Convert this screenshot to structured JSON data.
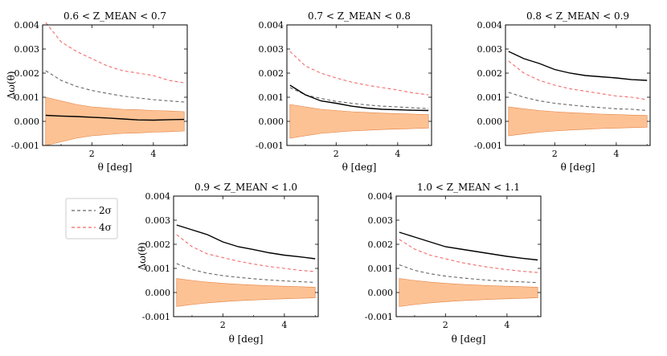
{
  "figure": {
    "x_label": "θ [deg]",
    "y_label": "Δω(θ)"
  },
  "legend": {
    "entries": [
      {
        "label": "2σ",
        "color": "#666666",
        "dashed": true
      },
      {
        "label": "4σ",
        "color": "#f26b6b",
        "dashed": true
      }
    ]
  },
  "chart_data": [
    {
      "type": "line",
      "title": "0.6 < Z_MEAN < 0.7",
      "xlabel": "θ [deg]",
      "ylabel": "Δω(θ)",
      "xlim": [
        0.4,
        5.1
      ],
      "ylim": [
        -0.001,
        0.004
      ],
      "xticks": [
        2,
        4
      ],
      "yticks": [
        -0.001,
        0.0,
        0.001,
        0.002,
        0.003,
        0.004
      ],
      "x": [
        0.5,
        1.0,
        1.5,
        2.0,
        2.5,
        3.0,
        3.5,
        4.0,
        4.5,
        5.0
      ],
      "series": [
        {
          "name": "2σ",
          "style": "dashed",
          "color": "#666666",
          "values": [
            0.0021,
            0.0017,
            0.00145,
            0.00128,
            0.00116,
            0.00105,
            0.00097,
            0.0009,
            0.00085,
            0.0008
          ]
        },
        {
          "name": "4σ",
          "style": "dashed",
          "color": "#f26b6b",
          "values": [
            0.0041,
            0.0033,
            0.0029,
            0.0026,
            0.0023,
            0.0021,
            0.002,
            0.0019,
            0.0017,
            0.0016
          ]
        },
        {
          "name": "measured",
          "style": "solid",
          "color": "#000000",
          "values": [
            0.00025,
            0.00022,
            0.0002,
            0.00017,
            0.00014,
            0.0001,
            6e-05,
            5e-05,
            7e-05,
            8e-05
          ]
        }
      ],
      "band": {
        "color": "#fdbf8f",
        "upper": [
          0.001,
          0.00085,
          0.0007,
          0.0006,
          0.00055,
          0.0005,
          0.00048,
          0.00045,
          0.00043,
          0.0004
        ],
        "lower": [
          -0.001,
          -0.00085,
          -0.0007,
          -0.0006,
          -0.00055,
          -0.0005,
          -0.00048,
          -0.00045,
          -0.00043,
          -0.0004
        ]
      }
    },
    {
      "type": "line",
      "title": "0.7 < Z_MEAN < 0.8",
      "xlabel": "θ [deg]",
      "ylabel": "",
      "xlim": [
        0.4,
        5.1
      ],
      "ylim": [
        -0.001,
        0.004
      ],
      "xticks": [
        2,
        4
      ],
      "yticks": [
        -0.001,
        0.0,
        0.001,
        0.002,
        0.003,
        0.004
      ],
      "x": [
        0.5,
        1.0,
        1.5,
        2.0,
        2.5,
        3.0,
        3.5,
        4.0,
        4.5,
        5.0
      ],
      "series": [
        {
          "name": "2σ",
          "style": "dashed",
          "color": "#666666",
          "values": [
            0.0014,
            0.0011,
            0.00095,
            0.00083,
            0.00075,
            0.00068,
            0.00063,
            0.0006,
            0.00056,
            0.00053
          ]
        },
        {
          "name": "4σ",
          "style": "dashed",
          "color": "#f26b6b",
          "values": [
            0.0029,
            0.0023,
            0.002,
            0.0018,
            0.00163,
            0.0015,
            0.0014,
            0.0013,
            0.00118,
            0.0011
          ]
        },
        {
          "name": "measured",
          "style": "solid",
          "color": "#000000",
          "values": [
            0.0015,
            0.0011,
            0.00085,
            0.00075,
            0.00063,
            0.00055,
            0.0005,
            0.00048,
            0.00046,
            0.00045
          ]
        }
      ],
      "band": {
        "color": "#fdbf8f",
        "upper": [
          0.0007,
          0.0006,
          0.0005,
          0.00045,
          0.0004,
          0.00037,
          0.00034,
          0.00032,
          0.0003,
          0.00028
        ],
        "lower": [
          -0.0007,
          -0.0006,
          -0.0005,
          -0.00045,
          -0.0004,
          -0.00037,
          -0.00034,
          -0.00032,
          -0.0003,
          -0.00028
        ]
      }
    },
    {
      "type": "line",
      "title": "0.8 < Z_MEAN < 0.9",
      "xlabel": "θ [deg]",
      "ylabel": "",
      "xlim": [
        0.4,
        5.1
      ],
      "ylim": [
        -0.001,
        0.004
      ],
      "xticks": [
        2,
        4
      ],
      "yticks": [
        -0.001,
        0.0,
        0.001,
        0.002,
        0.003,
        0.004
      ],
      "x": [
        0.5,
        1.0,
        1.5,
        2.0,
        2.5,
        3.0,
        3.5,
        4.0,
        4.5,
        5.0
      ],
      "series": [
        {
          "name": "2σ",
          "style": "dashed",
          "color": "#666666",
          "values": [
            0.0012,
            0.001,
            0.00085,
            0.00075,
            0.00068,
            0.00062,
            0.00057,
            0.00052,
            0.0005,
            0.00045
          ]
        },
        {
          "name": "4σ",
          "style": "dashed",
          "color": "#f26b6b",
          "values": [
            0.0025,
            0.002,
            0.0017,
            0.0015,
            0.00135,
            0.00125,
            0.00115,
            0.00105,
            0.001,
            0.0009
          ]
        },
        {
          "name": "measured",
          "style": "solid",
          "color": "#000000",
          "values": [
            0.0029,
            0.0026,
            0.0024,
            0.00215,
            0.002,
            0.0019,
            0.00185,
            0.0018,
            0.00173,
            0.0017
          ]
        }
      ],
      "band": {
        "color": "#fdbf8f",
        "upper": [
          0.0006,
          0.00052,
          0.00045,
          0.0004,
          0.00036,
          0.00033,
          0.0003,
          0.00028,
          0.00026,
          0.00025
        ],
        "lower": [
          -0.0006,
          -0.00052,
          -0.00045,
          -0.0004,
          -0.00036,
          -0.00033,
          -0.0003,
          -0.00028,
          -0.00026,
          -0.00025
        ]
      }
    },
    {
      "type": "line",
      "title": "0.9 < Z_MEAN < 1.0",
      "xlabel": "θ [deg]",
      "ylabel": "Δω(θ)",
      "xlim": [
        0.4,
        5.1
      ],
      "ylim": [
        -0.001,
        0.004
      ],
      "xticks": [
        2,
        4
      ],
      "yticks": [
        -0.001,
        0.0,
        0.001,
        0.002,
        0.003,
        0.004
      ],
      "x": [
        0.5,
        1.0,
        1.5,
        2.0,
        2.5,
        3.0,
        3.5,
        4.0,
        4.5,
        5.0
      ],
      "series": [
        {
          "name": "2σ",
          "style": "dashed",
          "color": "#666666",
          "values": [
            0.0012,
            0.00095,
            0.0008,
            0.0007,
            0.00063,
            0.00057,
            0.00052,
            0.00048,
            0.00045,
            0.00042
          ]
        },
        {
          "name": "4σ",
          "style": "dashed",
          "color": "#f26b6b",
          "values": [
            0.0024,
            0.0019,
            0.0016,
            0.00145,
            0.0013,
            0.00118,
            0.00108,
            0.001,
            0.00092,
            0.00087
          ]
        },
        {
          "name": "measured",
          "style": "solid",
          "color": "#000000",
          "values": [
            0.0028,
            0.0026,
            0.0024,
            0.0021,
            0.0019,
            0.00178,
            0.00165,
            0.00155,
            0.00148,
            0.0014
          ]
        }
      ],
      "band": {
        "color": "#fdbf8f",
        "upper": [
          0.00058,
          0.0005,
          0.00043,
          0.00038,
          0.00034,
          0.00031,
          0.00028,
          0.00026,
          0.00024,
          0.00022
        ],
        "lower": [
          -0.00058,
          -0.0005,
          -0.00043,
          -0.00038,
          -0.00034,
          -0.00031,
          -0.00028,
          -0.00026,
          -0.00024,
          -0.00022
        ]
      }
    },
    {
      "type": "line",
      "title": "1.0 < Z_MEAN < 1.1",
      "xlabel": "θ [deg]",
      "ylabel": "",
      "xlim": [
        0.4,
        5.1
      ],
      "ylim": [
        -0.001,
        0.004
      ],
      "xticks": [
        2,
        4
      ],
      "yticks": [
        -0.001,
        0.0,
        0.001,
        0.002,
        0.003,
        0.004
      ],
      "x": [
        0.5,
        1.0,
        1.5,
        2.0,
        2.5,
        3.0,
        3.5,
        4.0,
        4.5,
        5.0
      ],
      "series": [
        {
          "name": "2σ",
          "style": "dashed",
          "color": "#666666",
          "values": [
            0.00115,
            0.00092,
            0.00078,
            0.00068,
            0.00061,
            0.00055,
            0.0005,
            0.00047,
            0.00044,
            0.00041
          ]
        },
        {
          "name": "4σ",
          "style": "dashed",
          "color": "#f26b6b",
          "values": [
            0.0022,
            0.0018,
            0.00155,
            0.0014,
            0.00125,
            0.00113,
            0.00103,
            0.00095,
            0.00088,
            0.00083
          ]
        },
        {
          "name": "measured",
          "style": "solid",
          "color": "#000000",
          "values": [
            0.0025,
            0.0023,
            0.0021,
            0.0019,
            0.0018,
            0.0017,
            0.0016,
            0.0015,
            0.00142,
            0.00135
          ]
        }
      ],
      "band": {
        "color": "#fdbf8f",
        "upper": [
          0.00058,
          0.0005,
          0.00043,
          0.00038,
          0.00034,
          0.00031,
          0.00028,
          0.00026,
          0.00024,
          0.00022
        ],
        "lower": [
          -0.00058,
          -0.0005,
          -0.00043,
          -0.00038,
          -0.00034,
          -0.00031,
          -0.00028,
          -0.00026,
          -0.00024,
          -0.00022
        ]
      }
    }
  ]
}
